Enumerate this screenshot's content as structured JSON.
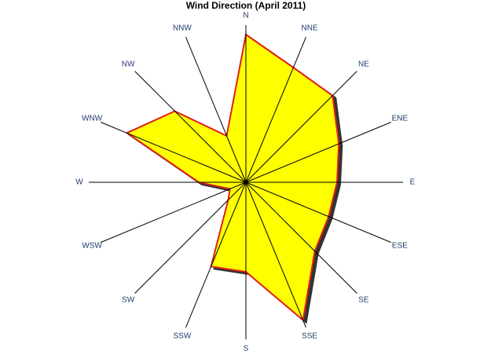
{
  "chart_data": {
    "type": "radar",
    "title": "Wind Direction (April 2011)",
    "categories": [
      "N",
      "NNE",
      "NE",
      "ENE",
      "E",
      "ESE",
      "SE",
      "SSE",
      "S",
      "SSW",
      "SW",
      "WSW",
      "W",
      "WNW",
      "NW",
      "NNW"
    ],
    "values": [
      9.4,
      7.9,
      7.8,
      6.4,
      5.8,
      5.7,
      6.2,
      9.5,
      5.7,
      5.8,
      1.6,
      1.1,
      3.0,
      8.2,
      6.4,
      3.2
    ],
    "rlim": [
      0,
      10
    ],
    "color": "#ffff00",
    "edge_color": "#e0201c"
  }
}
